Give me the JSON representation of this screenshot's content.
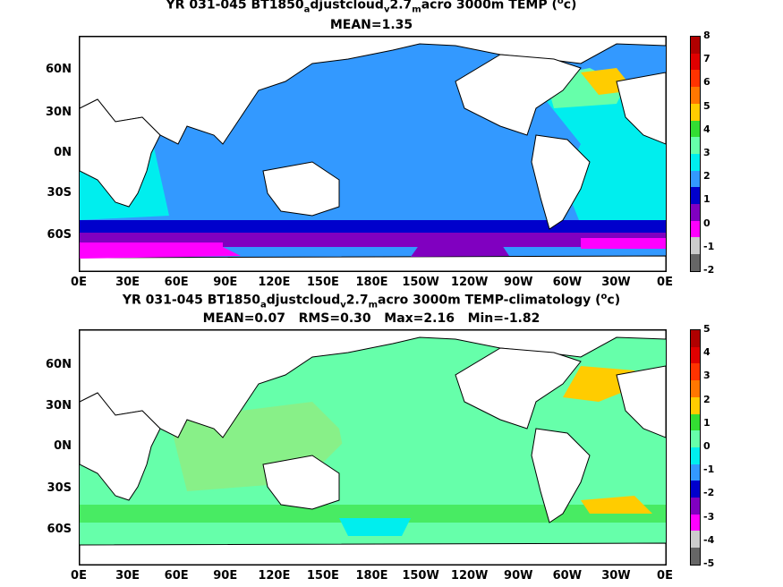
{
  "panel1": {
    "title": [
      "YR 031-045 BT1850",
      "a",
      "djustcloud",
      "v",
      "2.7",
      "m",
      "acro 3000m TEMP (",
      "o",
      "c)"
    ],
    "stats": "MEAN=1.35",
    "colorbar_labels": [
      "8",
      "7",
      "6",
      "5",
      "4",
      "3",
      "2",
      "1",
      "0",
      "-1",
      "-2"
    ],
    "colorbar_colors": [
      "#b00000",
      "#e00000",
      "#ff3300",
      "#ff7700",
      "#ffcc00",
      "#33dd33",
      "#66ffaa",
      "#00eeee",
      "#3399ff",
      "#0000cc",
      "#8000c0",
      "#ff00ff",
      "#cccccc",
      "#666666"
    ]
  },
  "panel2": {
    "title": [
      "YR 031-045 BT1850",
      "a",
      "djustcloud",
      "v",
      "2.7",
      "m",
      "acro 3000m TEMP-climatology (",
      "o",
      "c)"
    ],
    "stats": "MEAN=0.07   RMS=0.30   Max=2.16   Min=-1.82",
    "colorbar_labels": [
      "5",
      "4",
      "3",
      "2",
      "1",
      "0",
      "-1",
      "-2",
      "-3",
      "-4",
      "-5"
    ],
    "colorbar_colors": [
      "#b00000",
      "#e00000",
      "#ff3300",
      "#ff7700",
      "#ffcc00",
      "#33dd33",
      "#66ffaa",
      "#00eeee",
      "#3399ff",
      "#0000cc",
      "#8000c0",
      "#ff00ff",
      "#cccccc",
      "#666666"
    ]
  },
  "lat_labels": [
    "60N",
    "30N",
    "0N",
    "30S",
    "60S"
  ],
  "lon_labels": [
    "0E",
    "30E",
    "60E",
    "90E",
    "120E",
    "150E",
    "180E",
    "150W",
    "120W",
    "90W",
    "60W",
    "30W",
    "0E"
  ]
}
